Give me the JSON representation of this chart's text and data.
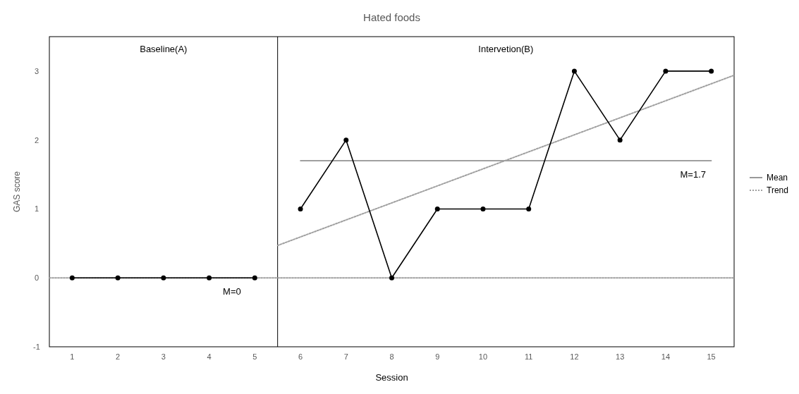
{
  "chart_data": {
    "type": "line",
    "title": "Hated foods",
    "xlabel": "Session",
    "ylabel": "GAS score",
    "xlim": [
      0.5,
      15.5
    ],
    "xticks": [
      1,
      2,
      3,
      4,
      5,
      6,
      7,
      8,
      9,
      10,
      11,
      12,
      13,
      14,
      15
    ],
    "ylim": [
      -1,
      3.5
    ],
    "yticks": [
      -1,
      0,
      1,
      2,
      3
    ],
    "grid": false,
    "legend": "right",
    "series": [
      {
        "color": "#000000",
        "marker": "circle",
        "line_style": "solid",
        "x": [
          1,
          2,
          3,
          4,
          5
        ],
        "values": [
          0,
          0,
          0,
          0,
          0
        ]
      },
      {
        "color": "#000000",
        "marker": "circle",
        "line_style": "solid",
        "x": [
          6,
          7,
          8,
          9,
          10,
          11,
          12,
          13,
          14,
          15
        ],
        "values": [
          1,
          2,
          0,
          1,
          1,
          1,
          3,
          2,
          3,
          3
        ]
      },
      {
        "name": "Mean",
        "color": "#808080",
        "marker": "none",
        "line_style": "solid",
        "x": [
          6,
          15
        ],
        "values": [
          1.7,
          1.7
        ]
      },
      {
        "name": "Trend",
        "color": "#a0a0a0",
        "marker": "none",
        "line_style": "dotted",
        "x": [
          0.5,
          15.5
        ],
        "values": [
          0,
          0
        ]
      },
      {
        "color": "#a0a0a0",
        "marker": "none",
        "line_style": "dotted",
        "x": [
          5.5,
          15.5
        ],
        "values": [
          0.47,
          2.94
        ]
      }
    ],
    "ref_lines": [
      {
        "axis": "x",
        "value": 5.5,
        "color": "#000000"
      }
    ],
    "annotations": [
      "Baseline(A)",
      "Intervetion(B)",
      {
        "text": "M=0",
        "x": 4.5,
        "y": 0
      },
      {
        "text": "M=1.7",
        "x": 14.6,
        "y": 1.7
      }
    ]
  }
}
